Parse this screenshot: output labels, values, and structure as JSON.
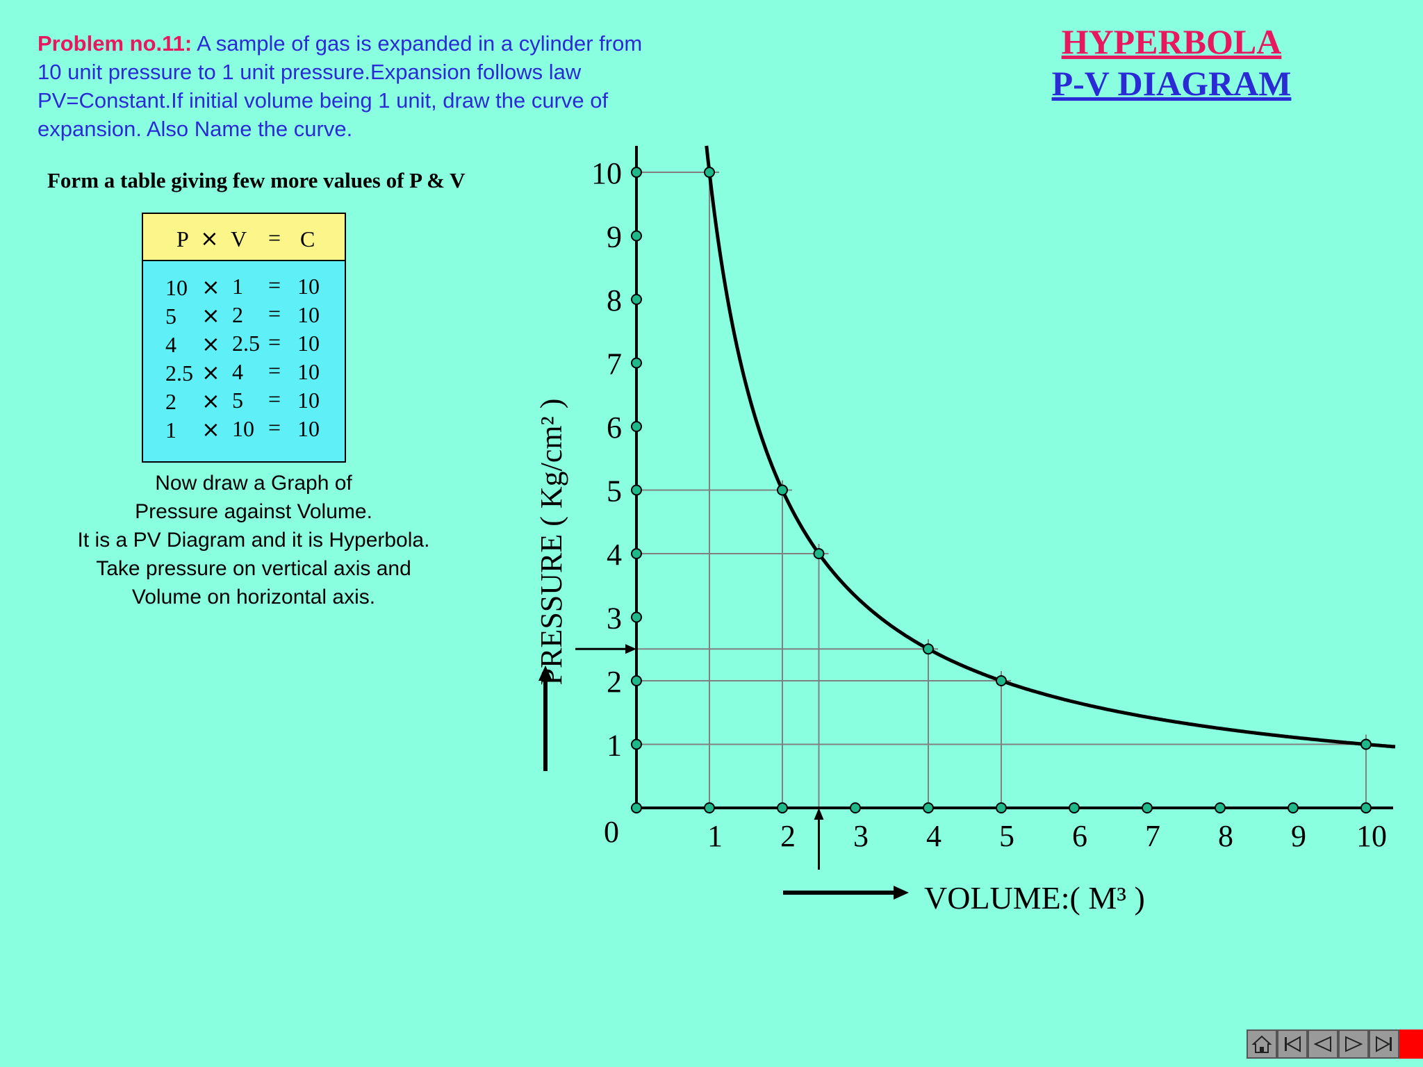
{
  "problem": {
    "lead": "Problem no.11:",
    "text": " A sample of gas is expanded in a cylinder from 10 unit pressure to 1 unit pressure.Expansion follows law PV=Constant.If initial volume being 1 unit, draw the curve of expansion. Also Name the curve."
  },
  "title": {
    "line1": "HYPERBOLA",
    "line2": "P-V DIAGRAM"
  },
  "table_intro": "Form a table giving few more values of P & V",
  "table": {
    "header": {
      "p": "P",
      "times": "×",
      "v": "V",
      "eq": "=",
      "c": "C"
    },
    "rows": [
      {
        "p": "10",
        "times": "×",
        "v": "1",
        "eq": "=",
        "c": "10"
      },
      {
        "p": "5",
        "times": "×",
        "v": "2",
        "eq": "=",
        "c": "10"
      },
      {
        "p": "4",
        "times": "×",
        "v": "2.5",
        "eq": "=",
        "c": "10"
      },
      {
        "p": "2.5",
        "times": "×",
        "v": "4",
        "eq": "=",
        "c": "10"
      },
      {
        "p": "2",
        "times": "×",
        "v": "5",
        "eq": "=",
        "c": "10"
      },
      {
        "p": "1",
        "times": "×",
        "v": "10",
        "eq": "=",
        "c": "10"
      }
    ]
  },
  "graph_instructions": [
    "Now draw a Graph of",
    "Pressure against Volume.",
    "It is a PV Diagram and it is Hyperbola.",
    "Take pressure on vertical axis and",
    "Volume on horizontal axis."
  ],
  "chart_data": {
    "type": "line",
    "title": "",
    "xlabel": "VOLUME:( M³ )",
    "ylabel": "PRESSURE ( Kg/cm² )",
    "origin_label": "0",
    "xlim": [
      0,
      10
    ],
    "ylim": [
      0,
      10
    ],
    "x_ticks": [
      "1",
      "2",
      "3",
      "4",
      "5",
      "6",
      "7",
      "8",
      "9",
      "10"
    ],
    "y_ticks": [
      "1",
      "2",
      "3",
      "4",
      "5",
      "6",
      "7",
      "8",
      "9",
      "10"
    ],
    "grid": false,
    "series": [
      {
        "x": [
          1,
          2,
          2.5,
          4,
          5,
          10
        ],
        "y": [
          10,
          5,
          4,
          2.5,
          2,
          1
        ],
        "curve": "PV=10 hyperbola"
      }
    ],
    "colors": {
      "curve": "#000000",
      "point": "#1fb88a",
      "guide": "#808080"
    }
  },
  "nav_icons": [
    "home-icon",
    "first-slide-icon",
    "previous-slide-icon",
    "next-slide-icon",
    "last-slide-icon",
    "stop-icon"
  ]
}
